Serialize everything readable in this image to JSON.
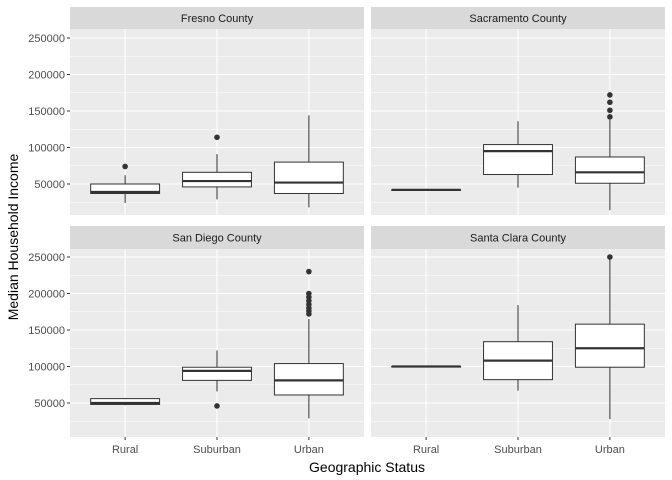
{
  "chart_data": {
    "type": "boxplot",
    "title": "",
    "xlabel": "Geographic Status",
    "ylabel": "Median Household Income",
    "categories": [
      "Rural",
      "Suburban",
      "Urban"
    ],
    "ylim": [
      5000,
      262000
    ],
    "yticks": [
      50000,
      100000,
      150000,
      200000,
      250000
    ],
    "ytick_labels": [
      "50000",
      "100000",
      "150000",
      "200000",
      "250000"
    ],
    "grid": true,
    "facet_layout": "2x2",
    "panels": [
      {
        "name": "Fresno County",
        "boxes": [
          {
            "category": "Rural",
            "min": 24000,
            "q1": 37000,
            "median": 39000,
            "q3": 50000,
            "max": 62000,
            "outliers": [
              74000
            ]
          },
          {
            "category": "Suburban",
            "min": 29000,
            "q1": 46000,
            "median": 54000,
            "q3": 66000,
            "max": 91000,
            "outliers": [
              114000
            ]
          },
          {
            "category": "Urban",
            "min": 18000,
            "q1": 37000,
            "median": 52000,
            "q3": 80000,
            "max": 144000,
            "outliers": []
          }
        ]
      },
      {
        "name": "Sacramento County",
        "boxes": [
          {
            "category": "Rural",
            "min": 42000,
            "q1": 42000,
            "median": 42000,
            "q3": 42000,
            "max": 42000,
            "outliers": []
          },
          {
            "category": "Suburban",
            "min": 45000,
            "q1": 63000,
            "median": 95000,
            "q3": 104000,
            "max": 136000,
            "outliers": []
          },
          {
            "category": "Urban",
            "min": 14000,
            "q1": 51000,
            "median": 66000,
            "q3": 87000,
            "max": 138000,
            "outliers": [
              142000,
              151000,
              162000,
              172000
            ]
          }
        ]
      },
      {
        "name": "San Diego County",
        "boxes": [
          {
            "category": "Rural",
            "min": 47000,
            "q1": 48000,
            "median": 50000,
            "q3": 56000,
            "max": 57000,
            "outliers": []
          },
          {
            "category": "Suburban",
            "min": 66000,
            "q1": 81000,
            "median": 94000,
            "q3": 99000,
            "max": 122000,
            "outliers": [
              46000
            ]
          },
          {
            "category": "Urban",
            "min": 29000,
            "q1": 61000,
            "median": 81000,
            "q3": 104000,
            "max": 165000,
            "outliers": [
              172000,
              176000,
              180000,
              185000,
              190000,
              195000,
              200000,
              230000
            ]
          }
        ]
      },
      {
        "name": "Santa Clara County",
        "boxes": [
          {
            "category": "Rural",
            "min": 100000,
            "q1": 100000,
            "median": 100000,
            "q3": 100000,
            "max": 100000,
            "outliers": []
          },
          {
            "category": "Suburban",
            "min": 67000,
            "q1": 82000,
            "median": 108000,
            "q3": 134000,
            "max": 184000,
            "outliers": []
          },
          {
            "category": "Urban",
            "min": 28000,
            "q1": 99000,
            "median": 125000,
            "q3": 158000,
            "max": 248000,
            "outliers": [
              250000
            ]
          }
        ]
      }
    ]
  },
  "colors": {
    "panel_background": "#ebebeb",
    "strip_background": "#d9d9d9",
    "grid": "#ffffff",
    "box_fill": "#ffffff",
    "box_line": "#333333",
    "outlier": "#333333"
  }
}
